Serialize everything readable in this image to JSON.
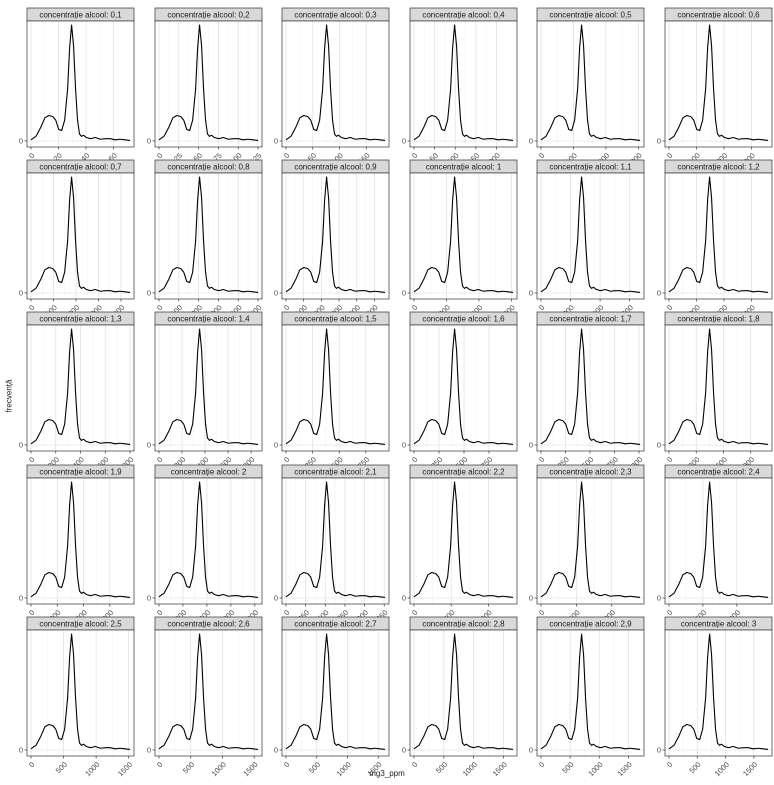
{
  "figure": {
    "ylabel": "frecvență",
    "xlabel": "mg3_ppm"
  },
  "chart_data": {
    "type": "density-facets",
    "ncol": 6,
    "xlabel": "mg3_ppm",
    "ylabel": "frecvență",
    "strip_prefix": "concentrație alcool: ",
    "y_ticks": [
      0
    ],
    "grid": true,
    "shape": {
      "x_rel": [
        0.0,
        0.05,
        0.1,
        0.14,
        0.18,
        0.22,
        0.25,
        0.28,
        0.31,
        0.34,
        0.37,
        0.39,
        0.41,
        0.43,
        0.45,
        0.47,
        0.49,
        0.51,
        0.53,
        0.56,
        0.6,
        0.65,
        0.7,
        0.75,
        0.8,
        0.85,
        0.9,
        0.95,
        1.0
      ],
      "y_rel": [
        0.01,
        0.04,
        0.12,
        0.2,
        0.22,
        0.21,
        0.18,
        0.1,
        0.09,
        0.18,
        0.45,
        0.8,
        1.0,
        0.82,
        0.45,
        0.18,
        0.06,
        0.04,
        0.05,
        0.03,
        0.02,
        0.03,
        0.015,
        0.02,
        0.02,
        0.01,
        0.015,
        0.01,
        0.005
      ]
    },
    "panels": [
      {
        "label": "0,1",
        "xmin": 0,
        "xmax": 72,
        "ticks": [
          "0",
          "20",
          "40",
          "60"
        ]
      },
      {
        "label": "0,2",
        "xmin": 0,
        "xmax": 125,
        "ticks": [
          "0",
          "25",
          "50",
          "75",
          "100",
          "125"
        ]
      },
      {
        "label": "0,3",
        "xmin": 0,
        "xmax": 185,
        "ticks": [
          "0",
          "50",
          "100",
          "150"
        ]
      },
      {
        "label": "0,4",
        "xmin": 0,
        "xmax": 240,
        "ticks": [
          "0",
          "50",
          "100",
          "150",
          "200"
        ]
      },
      {
        "label": "0,5",
        "xmin": 0,
        "xmax": 305,
        "ticks": [
          "0",
          "100",
          "200",
          "300"
        ]
      },
      {
        "label": "0,6",
        "xmin": 0,
        "xmax": 360,
        "ticks": [
          "0",
          "100",
          "200",
          "300"
        ]
      },
      {
        "label": "0,7",
        "xmin": 0,
        "xmax": 440,
        "ticks": [
          "0",
          "100",
          "200",
          "300",
          "400"
        ]
      },
      {
        "label": "0,8",
        "xmin": 0,
        "xmax": 500,
        "ticks": [
          "0",
          "100",
          "200",
          "300",
          "400",
          "500"
        ]
      },
      {
        "label": "0,9",
        "xmin": 0,
        "xmax": 560,
        "ticks": [
          "0",
          "100",
          "200",
          "300",
          "400",
          "500"
        ]
      },
      {
        "label": "1",
        "xmin": 0,
        "xmax": 610,
        "ticks": [
          "0",
          "200",
          "400",
          "600"
        ]
      },
      {
        "label": "1,1",
        "xmin": 0,
        "xmax": 670,
        "ticks": [
          "0",
          "200",
          "400",
          "600"
        ]
      },
      {
        "label": "1,2",
        "xmin": 0,
        "xmax": 720,
        "ticks": [
          "0",
          "200",
          "400",
          "600"
        ]
      },
      {
        "label": "1,3",
        "xmin": 0,
        "xmax": 800,
        "ticks": [
          "0",
          "200",
          "400",
          "600",
          "800"
        ]
      },
      {
        "label": "1,4",
        "xmin": 0,
        "xmax": 860,
        "ticks": [
          "0",
          "200",
          "400",
          "600",
          "800"
        ]
      },
      {
        "label": "1,5",
        "xmin": 0,
        "xmax": 930,
        "ticks": [
          "0",
          "250",
          "500",
          "750"
        ]
      },
      {
        "label": "1,6",
        "xmin": 0,
        "xmax": 990,
        "ticks": [
          "0",
          "250",
          "500",
          "750"
        ]
      },
      {
        "label": "1,7",
        "xmin": 0,
        "xmax": 1010,
        "ticks": [
          "0",
          "250",
          "500",
          "750",
          "1000"
        ]
      },
      {
        "label": "1,8",
        "xmin": 0,
        "xmax": 1090,
        "ticks": [
          "0",
          "300",
          "600",
          "900"
        ]
      },
      {
        "label": "1,9",
        "xmin": 0,
        "xmax": 1130,
        "ticks": [
          "0",
          "300",
          "600",
          "900"
        ]
      },
      {
        "label": "2",
        "xmin": 0,
        "xmax": 1240,
        "ticks": [
          "0",
          "300",
          "600",
          "900",
          "1200"
        ]
      },
      {
        "label": "2,1",
        "xmin": 0,
        "xmax": 1260,
        "ticks": [
          "0",
          "250",
          "500",
          "750",
          "1000",
          "1250"
        ]
      },
      {
        "label": "2,2",
        "xmin": 0,
        "xmax": 1330,
        "ticks": [
          "0",
          "500",
          "1000"
        ]
      },
      {
        "label": "2,3",
        "xmin": 0,
        "xmax": 1400,
        "ticks": [
          "0",
          "500",
          "1000"
        ]
      },
      {
        "label": "2,4",
        "xmin": 0,
        "xmax": 1460,
        "ticks": [
          "0",
          "500",
          "1000"
        ]
      },
      {
        "label": "2,5",
        "xmin": 0,
        "xmax": 1520,
        "ticks": [
          "0",
          "500",
          "1000",
          "1500"
        ]
      },
      {
        "label": "2,6",
        "xmin": 0,
        "xmax": 1560,
        "ticks": [
          "0",
          "500",
          "1000",
          "1500"
        ]
      },
      {
        "label": "2,7",
        "xmin": 0,
        "xmax": 1610,
        "ticks": [
          "0",
          "500",
          "1000",
          "1500"
        ]
      },
      {
        "label": "2,8",
        "xmin": 0,
        "xmax": 1660,
        "ticks": [
          "0",
          "500",
          "1000",
          "1500"
        ]
      },
      {
        "label": "2,9",
        "xmin": 0,
        "xmax": 1700,
        "ticks": [
          "0",
          "500",
          "1000",
          "1500"
        ]
      },
      {
        "label": "3",
        "xmin": 0,
        "xmax": 1750,
        "ticks": [
          "0",
          "500",
          "1000",
          "1500"
        ]
      }
    ]
  }
}
